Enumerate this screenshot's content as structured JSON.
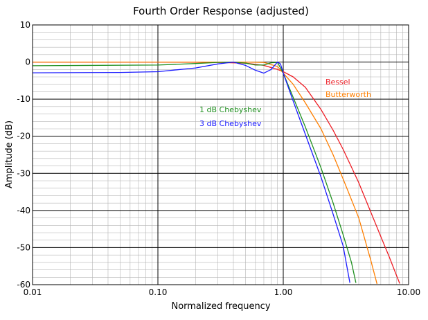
{
  "chart_data": {
    "type": "line",
    "title": "Fourth Order Response (adjusted)",
    "xlabel": "Normalized frequency",
    "ylabel": "Amplitude (dB)",
    "x_scale": "log",
    "xlim": [
      0.01,
      10
    ],
    "ylim": [
      -60,
      10
    ],
    "x_ticks": [
      0.01,
      0.1,
      1,
      10
    ],
    "x_tick_labels": [
      "0.01",
      "0.10",
      "1.00",
      "10.00"
    ],
    "y_ticks": [
      10,
      0,
      -10,
      -20,
      -30,
      -40,
      -50,
      -60
    ],
    "y_tick_labels": [
      "10",
      "0",
      "-10",
      "-20",
      "-30",
      "-40",
      "-50",
      "-60"
    ],
    "grid": true,
    "series": [
      {
        "name": "Bessel",
        "color": "#ee1c24",
        "x": [
          0.01,
          0.1,
          0.3,
          0.5,
          0.7,
          0.9,
          1.0,
          1.2,
          1.5,
          2.0,
          2.5,
          3.0,
          4.0,
          5.0,
          6.0,
          7.0,
          8.0,
          8.5
        ],
        "y": [
          0,
          0,
          -0.1,
          -0.3,
          -0.9,
          -2.0,
          -2.6,
          -4.0,
          -6.8,
          -12.8,
          -18.4,
          -23.5,
          -32.5,
          -40.5,
          -47.0,
          -52.5,
          -57.5,
          -59.7
        ]
      },
      {
        "name": "Butterworth",
        "color": "#ff7f00",
        "x": [
          0.01,
          0.1,
          0.3,
          0.5,
          0.7,
          0.9,
          1.0,
          1.2,
          1.5,
          2.0,
          2.5,
          3.0,
          4.0,
          5.0,
          5.6
        ],
        "y": [
          0,
          0,
          0,
          0,
          -0.1,
          -1.2,
          -3.0,
          -6.0,
          -11.0,
          -18.0,
          -25.0,
          -31.5,
          -42.0,
          -53.5,
          -59.8
        ]
      },
      {
        "name": "1 dB Chebyshev",
        "color": "#1f8f1f",
        "x": [
          0.01,
          0.1,
          0.2,
          0.3,
          0.4,
          0.5,
          0.6,
          0.7,
          0.8,
          0.9,
          1.0,
          1.2,
          1.5,
          2.0,
          2.5,
          3.0,
          3.5,
          3.8
        ],
        "y": [
          -1.0,
          -0.8,
          -0.4,
          -0.1,
          0,
          -0.3,
          -0.8,
          -0.8,
          -0.2,
          -0.1,
          -3.0,
          -9.5,
          -17.5,
          -28.5,
          -38.0,
          -46.5,
          -54.0,
          -59.5
        ]
      },
      {
        "name": "3 dB Chebyshev",
        "color": "#1a1aff",
        "x": [
          0.01,
          0.05,
          0.1,
          0.2,
          0.3,
          0.4,
          0.5,
          0.6,
          0.7,
          0.8,
          0.9,
          0.95,
          1.0,
          1.2,
          1.5,
          2.0,
          2.5,
          3.0,
          3.4
        ],
        "y": [
          -2.9,
          -2.8,
          -2.6,
          -1.6,
          -0.5,
          0,
          -0.9,
          -2.2,
          -3.0,
          -2.0,
          0,
          -0.5,
          -3.0,
          -10.5,
          -19.5,
          -31.0,
          -41.0,
          -49.5,
          -59.5
        ]
      }
    ],
    "labels": [
      {
        "text": "Bessel",
        "color": "#ee1c24"
      },
      {
        "text": "Butterworth",
        "color": "#ff7f00"
      },
      {
        "text": "1 dB Chebyshev",
        "color": "#1f8f1f"
      },
      {
        "text": "3 dB Chebyshev",
        "color": "#1a1aff"
      }
    ]
  }
}
